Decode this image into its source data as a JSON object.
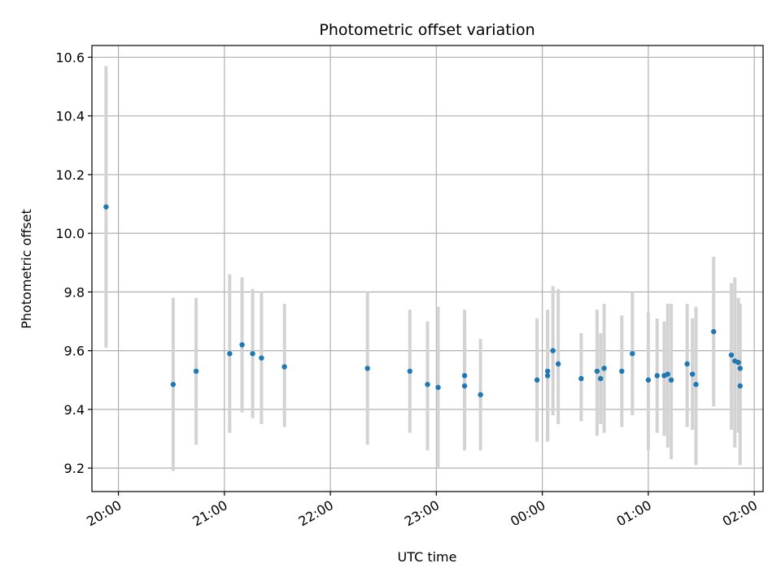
{
  "chart_data": {
    "type": "scatter",
    "title": "Photometric offset variation",
    "xlabel": "UTC time",
    "ylabel": "Photometric offset",
    "x_unit": "UTC time (HH:MM, spanning midnight)",
    "xlim": [
      "19:45",
      "02:05"
    ],
    "ylim": [
      9.12,
      10.64
    ],
    "grid": true,
    "x_ticks": [
      "20:00",
      "21:00",
      "22:00",
      "23:00",
      "00:00",
      "01:00",
      "02:00"
    ],
    "y_ticks": [
      "9.2",
      "9.4",
      "9.6",
      "9.8",
      "10.0",
      "10.2",
      "10.4",
      "10.6"
    ],
    "colors": {
      "point": "#1f77b4",
      "errorbar": "#d3d3d3",
      "grid": "#b0b0b0"
    },
    "points": [
      {
        "t": "19:53",
        "y": 10.09,
        "lo": 9.61,
        "hi": 10.57
      },
      {
        "t": "20:31",
        "y": 9.485,
        "lo": 9.19,
        "hi": 9.78
      },
      {
        "t": "20:44",
        "y": 9.53,
        "lo": 9.28,
        "hi": 9.78
      },
      {
        "t": "21:03",
        "y": 9.59,
        "lo": 9.32,
        "hi": 9.86
      },
      {
        "t": "21:10",
        "y": 9.62,
        "lo": 9.39,
        "hi": 9.85
      },
      {
        "t": "21:16",
        "y": 9.59,
        "lo": 9.37,
        "hi": 9.81
      },
      {
        "t": "21:21",
        "y": 9.575,
        "lo": 9.35,
        "hi": 9.8
      },
      {
        "t": "21:34",
        "y": 9.545,
        "lo": 9.34,
        "hi": 9.76
      },
      {
        "t": "22:21",
        "y": 9.54,
        "lo": 9.28,
        "hi": 9.8
      },
      {
        "t": "22:45",
        "y": 9.53,
        "lo": 9.32,
        "hi": 9.74
      },
      {
        "t": "22:55",
        "y": 9.485,
        "lo": 9.26,
        "hi": 9.7
      },
      {
        "t": "23:01",
        "y": 9.475,
        "lo": 9.2,
        "hi": 9.75
      },
      {
        "t": "23:16",
        "y": 9.48,
        "lo": 9.26,
        "hi": 9.7
      },
      {
        "t": "23:16",
        "y": 9.515,
        "lo": 9.3,
        "hi": 9.74
      },
      {
        "t": "23:25",
        "y": 9.45,
        "lo": 9.26,
        "hi": 9.64
      },
      {
        "t": "23:57",
        "y": 9.5,
        "lo": 9.29,
        "hi": 9.71
      },
      {
        "t": "00:03",
        "y": 9.53,
        "lo": 9.29,
        "hi": 9.74
      },
      {
        "t": "00:03",
        "y": 9.515,
        "lo": 9.3,
        "hi": 9.73
      },
      {
        "t": "00:06",
        "y": 9.6,
        "lo": 9.38,
        "hi": 9.82
      },
      {
        "t": "00:09",
        "y": 9.555,
        "lo": 9.35,
        "hi": 9.81
      },
      {
        "t": "00:22",
        "y": 9.505,
        "lo": 9.36,
        "hi": 9.66
      },
      {
        "t": "00:31",
        "y": 9.53,
        "lo": 9.31,
        "hi": 9.74
      },
      {
        "t": "00:33",
        "y": 9.505,
        "lo": 9.35,
        "hi": 9.66
      },
      {
        "t": "00:35",
        "y": 9.54,
        "lo": 9.32,
        "hi": 9.76
      },
      {
        "t": "00:45",
        "y": 9.53,
        "lo": 9.34,
        "hi": 9.72
      },
      {
        "t": "00:51",
        "y": 9.59,
        "lo": 9.38,
        "hi": 9.8
      },
      {
        "t": "01:00",
        "y": 9.5,
        "lo": 9.26,
        "hi": 9.73
      },
      {
        "t": "01:05",
        "y": 9.515,
        "lo": 9.32,
        "hi": 9.71
      },
      {
        "t": "01:09",
        "y": 9.515,
        "lo": 9.31,
        "hi": 9.7
      },
      {
        "t": "01:11",
        "y": 9.52,
        "lo": 9.27,
        "hi": 9.76
      },
      {
        "t": "01:13",
        "y": 9.5,
        "lo": 9.23,
        "hi": 9.76
      },
      {
        "t": "01:22",
        "y": 9.555,
        "lo": 9.34,
        "hi": 9.76
      },
      {
        "t": "01:25",
        "y": 9.52,
        "lo": 9.33,
        "hi": 9.71
      },
      {
        "t": "01:27",
        "y": 9.485,
        "lo": 9.21,
        "hi": 9.75
      },
      {
        "t": "01:37",
        "y": 9.665,
        "lo": 9.41,
        "hi": 9.92
      },
      {
        "t": "01:47",
        "y": 9.585,
        "lo": 9.33,
        "hi": 9.83
      },
      {
        "t": "01:49",
        "y": 9.565,
        "lo": 9.27,
        "hi": 9.85
      },
      {
        "t": "01:51",
        "y": 9.56,
        "lo": 9.32,
        "hi": 9.78
      },
      {
        "t": "01:52",
        "y": 9.54,
        "lo": 9.33,
        "hi": 9.76
      },
      {
        "t": "01:52",
        "y": 9.48,
        "lo": 9.21,
        "hi": 9.75
      }
    ]
  }
}
